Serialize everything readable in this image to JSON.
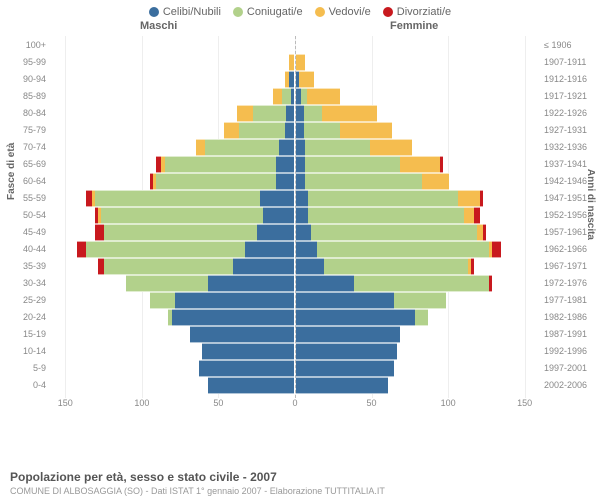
{
  "legend": [
    {
      "label": "Celibi/Nubili",
      "color": "#3b6e9e"
    },
    {
      "label": "Coniugati/e",
      "color": "#b2d18b"
    },
    {
      "label": "Vedovi/e",
      "color": "#f5bd4f"
    },
    {
      "label": "Divorziati/e",
      "color": "#c8191e"
    }
  ],
  "gender": {
    "male": "Maschi",
    "female": "Femmine"
  },
  "axis": {
    "left": "Fasce di età",
    "right": "Anni di nascita"
  },
  "footer": {
    "title": "Popolazione per età, sesso e stato civile - 2007",
    "sub": "COMUNE DI ALBOSAGGIA (SO) - Dati ISTAT 1° gennaio 2007 - Elaborazione TUTTITALIA.IT"
  },
  "x_ticks": [
    150,
    100,
    50,
    0,
    50,
    100,
    150
  ],
  "x_max": 160,
  "colors": {
    "single": "#3b6e9e",
    "married": "#b2d18b",
    "widowed": "#f5bd4f",
    "divorced": "#c8191e",
    "grid": "#eeeeee",
    "center": "#bbbbbb"
  },
  "rows": [
    {
      "age": "100+",
      "year": "≤ 1906",
      "m": {
        "s": 0,
        "m": 0,
        "w": 0,
        "d": 0
      },
      "f": {
        "s": 0,
        "m": 0,
        "w": 0,
        "d": 0
      }
    },
    {
      "age": "95-99",
      "year": "1907-1911",
      "m": {
        "s": 0,
        "m": 0,
        "w": 3,
        "d": 0
      },
      "f": {
        "s": 0,
        "m": 0,
        "w": 6,
        "d": 0
      }
    },
    {
      "age": "90-94",
      "year": "1912-1916",
      "m": {
        "s": 3,
        "m": 0,
        "w": 3,
        "d": 0
      },
      "f": {
        "s": 2,
        "m": 0,
        "w": 10,
        "d": 0
      }
    },
    {
      "age": "85-89",
      "year": "1917-1921",
      "m": {
        "s": 2,
        "m": 6,
        "w": 6,
        "d": 0
      },
      "f": {
        "s": 3,
        "m": 4,
        "w": 22,
        "d": 0
      }
    },
    {
      "age": "80-84",
      "year": "1922-1926",
      "m": {
        "s": 5,
        "m": 22,
        "w": 10,
        "d": 0
      },
      "f": {
        "s": 5,
        "m": 12,
        "w": 36,
        "d": 0
      }
    },
    {
      "age": "75-79",
      "year": "1927-1931",
      "m": {
        "s": 6,
        "m": 30,
        "w": 10,
        "d": 0
      },
      "f": {
        "s": 5,
        "m": 24,
        "w": 34,
        "d": 0
      }
    },
    {
      "age": "70-74",
      "year": "1932-1936",
      "m": {
        "s": 10,
        "m": 48,
        "w": 6,
        "d": 0
      },
      "f": {
        "s": 6,
        "m": 42,
        "w": 28,
        "d": 0
      }
    },
    {
      "age": "65-69",
      "year": "1937-1941",
      "m": {
        "s": 12,
        "m": 72,
        "w": 3,
        "d": 3
      },
      "f": {
        "s": 6,
        "m": 62,
        "w": 26,
        "d": 2
      }
    },
    {
      "age": "60-64",
      "year": "1942-1946",
      "m": {
        "s": 12,
        "m": 78,
        "w": 2,
        "d": 2
      },
      "f": {
        "s": 6,
        "m": 76,
        "w": 18,
        "d": 0
      }
    },
    {
      "age": "55-59",
      "year": "1947-1951",
      "m": {
        "s": 22,
        "m": 108,
        "w": 2,
        "d": 4
      },
      "f": {
        "s": 8,
        "m": 98,
        "w": 14,
        "d": 2
      }
    },
    {
      "age": "50-54",
      "year": "1952-1956",
      "m": {
        "s": 20,
        "m": 106,
        "w": 2,
        "d": 2
      },
      "f": {
        "s": 8,
        "m": 102,
        "w": 6,
        "d": 4
      }
    },
    {
      "age": "45-49",
      "year": "1957-1961",
      "m": {
        "s": 24,
        "m": 100,
        "w": 0,
        "d": 6
      },
      "f": {
        "s": 10,
        "m": 108,
        "w": 4,
        "d": 2
      }
    },
    {
      "age": "40-44",
      "year": "1962-1966",
      "m": {
        "s": 32,
        "m": 104,
        "w": 0,
        "d": 6
      },
      "f": {
        "s": 14,
        "m": 112,
        "w": 2,
        "d": 6
      }
    },
    {
      "age": "35-39",
      "year": "1967-1971",
      "m": {
        "s": 40,
        "m": 84,
        "w": 0,
        "d": 4
      },
      "f": {
        "s": 18,
        "m": 94,
        "w": 2,
        "d": 2
      }
    },
    {
      "age": "30-34",
      "year": "1972-1976",
      "m": {
        "s": 56,
        "m": 54,
        "w": 0,
        "d": 0
      },
      "f": {
        "s": 38,
        "m": 88,
        "w": 0,
        "d": 2
      }
    },
    {
      "age": "25-29",
      "year": "1977-1981",
      "m": {
        "s": 78,
        "m": 16,
        "w": 0,
        "d": 0
      },
      "f": {
        "s": 64,
        "m": 34,
        "w": 0,
        "d": 0
      }
    },
    {
      "age": "20-24",
      "year": "1982-1986",
      "m": {
        "s": 80,
        "m": 2,
        "w": 0,
        "d": 0
      },
      "f": {
        "s": 78,
        "m": 8,
        "w": 0,
        "d": 0
      }
    },
    {
      "age": "15-19",
      "year": "1987-1991",
      "m": {
        "s": 68,
        "m": 0,
        "w": 0,
        "d": 0
      },
      "f": {
        "s": 68,
        "m": 0,
        "w": 0,
        "d": 0
      }
    },
    {
      "age": "10-14",
      "year": "1992-1996",
      "m": {
        "s": 60,
        "m": 0,
        "w": 0,
        "d": 0
      },
      "f": {
        "s": 66,
        "m": 0,
        "w": 0,
        "d": 0
      }
    },
    {
      "age": "5-9",
      "year": "1997-2001",
      "m": {
        "s": 62,
        "m": 0,
        "w": 0,
        "d": 0
      },
      "f": {
        "s": 64,
        "m": 0,
        "w": 0,
        "d": 0
      }
    },
    {
      "age": "0-4",
      "year": "2002-2006",
      "m": {
        "s": 56,
        "m": 0,
        "w": 0,
        "d": 0
      },
      "f": {
        "s": 60,
        "m": 0,
        "w": 0,
        "d": 0
      }
    }
  ]
}
